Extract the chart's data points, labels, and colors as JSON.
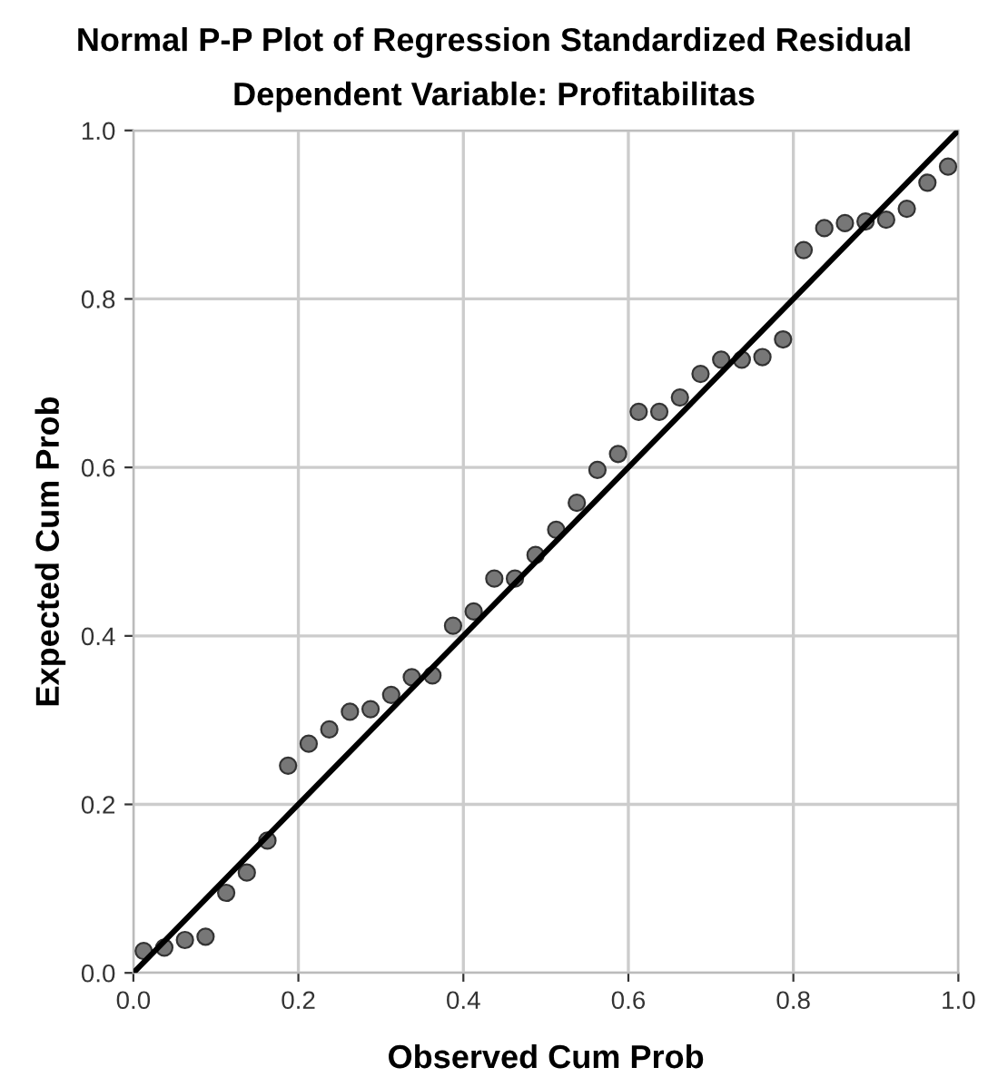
{
  "chart_data": {
    "type": "scatter",
    "title": "Normal P-P Plot of Regression Standardized Residual",
    "subtitle": "Dependent Variable: Profitabilitas",
    "xlabel": "Observed Cum Prob",
    "ylabel": "Expected Cum Prob",
    "xlim": [
      0,
      1
    ],
    "ylim": [
      0,
      1
    ],
    "xticks": [
      {
        "value": 0,
        "label": "0.0"
      },
      {
        "value": 0.2,
        "label": "0.2"
      },
      {
        "value": 0.4,
        "label": "0.4"
      },
      {
        "value": 0.6,
        "label": "0.6"
      },
      {
        "value": 0.8,
        "label": "0.8"
      },
      {
        "value": 1,
        "label": "1.0"
      }
    ],
    "yticks": [
      {
        "value": 0,
        "label": "0.0"
      },
      {
        "value": 0.2,
        "label": "0.2"
      },
      {
        "value": 0.4,
        "label": "0.4"
      },
      {
        "value": 0.6,
        "label": "0.6"
      },
      {
        "value": 0.8,
        "label": "0.8"
      },
      {
        "value": 1,
        "label": "1.0"
      }
    ],
    "grid": true,
    "marker": "circle",
    "series": [
      {
        "color": "#777777",
        "x": [
          0.0125,
          0.0375,
          0.0625,
          0.0875,
          0.1125,
          0.1375,
          0.1625,
          0.1875,
          0.2125,
          0.2375,
          0.2625,
          0.2875,
          0.3125,
          0.3375,
          0.3625,
          0.3875,
          0.4125,
          0.4375,
          0.4625,
          0.4875,
          0.5125,
          0.5375,
          0.5625,
          0.5875,
          0.6125,
          0.6375,
          0.6625,
          0.6875,
          0.7125,
          0.7375,
          0.7625,
          0.7875,
          0.8125,
          0.8375,
          0.8625,
          0.8875,
          0.9125,
          0.9375,
          0.9625,
          0.9875
        ],
        "values": [
          0.026,
          0.03,
          0.039,
          0.043,
          0.095,
          0.119,
          0.157,
          0.246,
          0.272,
          0.289,
          0.31,
          0.313,
          0.33,
          0.351,
          0.353,
          0.412,
          0.429,
          0.468,
          0.468,
          0.496,
          0.526,
          0.558,
          0.597,
          0.616,
          0.666,
          0.666,
          0.683,
          0.711,
          0.728,
          0.728,
          0.731,
          0.752,
          0.858,
          0.884,
          0.89,
          0.892,
          0.894,
          0.907,
          0.938,
          0.957
        ]
      },
      {
        "type": "line",
        "color": "#000000",
        "x": [
          0,
          1
        ],
        "values": [
          0,
          1
        ],
        "marker": "none"
      }
    ]
  }
}
